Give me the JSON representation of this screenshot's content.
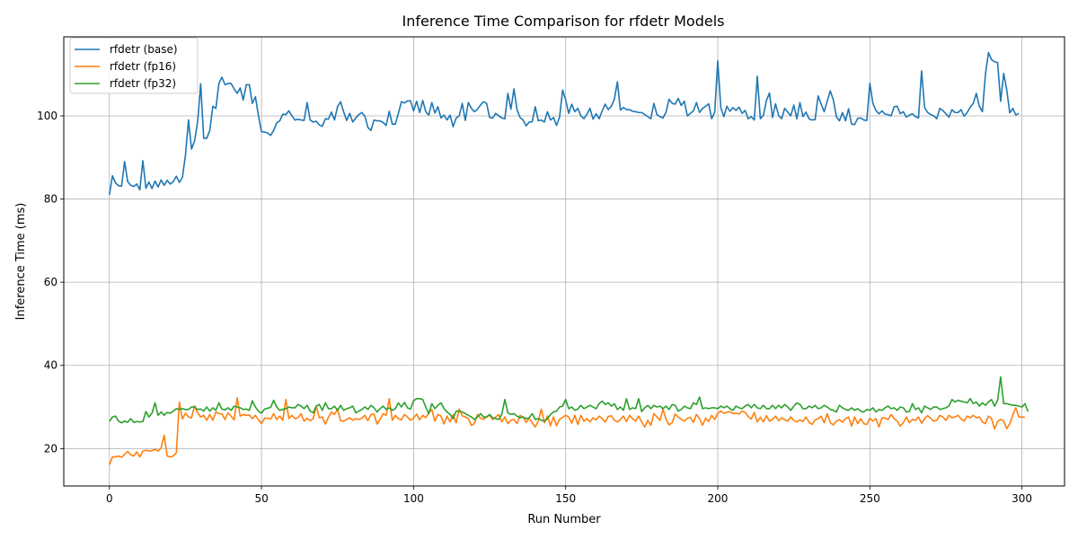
{
  "chart_data": {
    "type": "line",
    "title": "Inference Time Comparison for rfdetr Models",
    "xlabel": "Run Number",
    "ylabel": "Inference Time (ms)",
    "xlim": [
      -15,
      314
    ],
    "ylim": [
      11,
      119
    ],
    "xticks": [
      0,
      50,
      100,
      150,
      200,
      250,
      300
    ],
    "yticks": [
      20,
      40,
      60,
      80,
      100
    ],
    "grid": true,
    "legend_position": "top-left",
    "x": {
      "start": 0,
      "end": 299,
      "step": 1
    },
    "series": [
      {
        "name": "rfdetr (base)",
        "color": "#1f77b4",
        "values": [
          81.0,
          85.6,
          83.9,
          83.2,
          83.1,
          89.0,
          84.2,
          83.3,
          83.0,
          83.6,
          82.2,
          89.2,
          82.6,
          84.1,
          82.5,
          84.3,
          82.9,
          84.6,
          83.3,
          84.5,
          83.6,
          84.2,
          85.5,
          84.0,
          85.2,
          90.5,
          99.0,
          92.0,
          94.0,
          98.5,
          107.7,
          94.6,
          94.6,
          96.5,
          102.3,
          101.8,
          107.8,
          109.3,
          107.5,
          107.8,
          107.8,
          106.5,
          105.4,
          106.7,
          103.8,
          107.5,
          107.5,
          103.0,
          104.6,
          100.0,
          96.2,
          96.1,
          95.9,
          95.3,
          96.5,
          98.3,
          98.8,
          100.4,
          100.3,
          101.2,
          100.0,
          99.0,
          99.2,
          99.0,
          98.9,
          103.2,
          99.0,
          98.5,
          98.7,
          97.8,
          97.5,
          99.3,
          99.2,
          100.9,
          99.0,
          102.2,
          103.4,
          101.0,
          98.9,
          100.6,
          98.5,
          99.5,
          100.3,
          100.8,
          99.9,
          97.2,
          96.5,
          99.0,
          98.8,
          98.8,
          98.4,
          97.7,
          101.1,
          98.0,
          98.0,
          100.6,
          103.4,
          103.1,
          103.6,
          103.6,
          101.2,
          103.5,
          100.8,
          103.7,
          101.0,
          100.2,
          103.2,
          100.7,
          102.2,
          99.5,
          100.2,
          99.0,
          100.2,
          97.4,
          99.5,
          100.0,
          103.0,
          98.9,
          103.2,
          101.8,
          101.0,
          101.6,
          102.6,
          103.4,
          103.0,
          99.6,
          99.5,
          100.6,
          100.0,
          99.5,
          99.3,
          105.4,
          101.6,
          106.5,
          101.5,
          99.6,
          99.0,
          97.6,
          98.5,
          98.6,
          102.2,
          98.8,
          99.0,
          98.5,
          101.0,
          99.0,
          99.6,
          97.7,
          99.7,
          106.2,
          103.8,
          100.6,
          102.8,
          101.0,
          101.8,
          100.0,
          99.3,
          100.4,
          101.8,
          99.2,
          100.5,
          99.3,
          101.2,
          102.8,
          101.5,
          102.3,
          104.0,
          108.2,
          101.4,
          102.0,
          101.5,
          101.5,
          101.1,
          101.0,
          100.8,
          100.8,
          100.3,
          99.8,
          99.3,
          103.0,
          100.3,
          99.8,
          99.5,
          100.9,
          104.0,
          103.0,
          102.8,
          104.2,
          102.5,
          103.5,
          100.0,
          100.6,
          101.2,
          103.2,
          100.8,
          101.8,
          102.3,
          102.9,
          99.3,
          100.9,
          113.2,
          102.0,
          99.8,
          102.3,
          101.1,
          102.0,
          101.3,
          102.1,
          100.6,
          101.3,
          99.3,
          99.8,
          99.0,
          109.5,
          99.3,
          100.1,
          103.7,
          105.5,
          99.6,
          102.9,
          100.1,
          99.3,
          101.8,
          100.9,
          100.0,
          102.6,
          99.3,
          103.2,
          99.8,
          100.9,
          99.3,
          99.0,
          99.1,
          104.8,
          102.8,
          101.0,
          103.6,
          106.0,
          103.8,
          99.8,
          98.8,
          100.8,
          98.8,
          101.7,
          98.0,
          97.9,
          99.4,
          99.5,
          99.0,
          98.9,
          107.8,
          103.0,
          101.3,
          100.5,
          101.2,
          100.4,
          100.3,
          100.0,
          102.2,
          102.3,
          100.5,
          101.0,
          99.7,
          100.2,
          100.5,
          99.8,
          99.5,
          110.8,
          102.0,
          100.8,
          100.3,
          100.0,
          99.3,
          101.8,
          101.3,
          100.5,
          99.7,
          101.5,
          100.8,
          100.8,
          101.5,
          99.9,
          100.8,
          102.1,
          103.0,
          105.4,
          102.3,
          101.0,
          110.0,
          115.2,
          113.5,
          113.0,
          112.8,
          103.5,
          110.2,
          106.3,
          100.7,
          101.8,
          100.2,
          100.6
        ]
      },
      {
        "name": "rfdetr (fp16)",
        "color": "#ff7f0e",
        "values": [
          16.1,
          18.0,
          18.0,
          18.2,
          17.9,
          18.6,
          19.3,
          18.5,
          18.2,
          19.2,
          18.0,
          19.4,
          19.6,
          19.4,
          19.5,
          19.8,
          19.4,
          20.1,
          23.2,
          18.2,
          18.0,
          18.2,
          19.0,
          31.2,
          27.1,
          28.5,
          27.6,
          27.4,
          30.3,
          28.6,
          27.6,
          28.0,
          26.8,
          28.2,
          26.8,
          28.8,
          28.4,
          28.3,
          27.0,
          28.6,
          27.8,
          26.9,
          32.2,
          27.8,
          28.2,
          28.0,
          28.1,
          27.2,
          28.0,
          26.9,
          26.0,
          27.3,
          27.3,
          27.1,
          28.4,
          27.0,
          27.8,
          26.8,
          31.8,
          27.2,
          28.0,
          27.2,
          27.4,
          28.4,
          26.6,
          27.3,
          26.7,
          27.2,
          30.2,
          27.4,
          27.6,
          25.9,
          27.5,
          28.8,
          28.2,
          29.5,
          26.7,
          26.6,
          27.0,
          27.4,
          26.8,
          27.2,
          27.0,
          27.3,
          28.0,
          26.7,
          28.2,
          28.3,
          25.9,
          27.0,
          28.4,
          28.0,
          32.0,
          26.8,
          28.0,
          27.2,
          26.9,
          28.2,
          27.6,
          26.8,
          27.3,
          28.3,
          26.9,
          28.0,
          27.4,
          28.6,
          29.4,
          26.6,
          28.2,
          27.8,
          25.9,
          27.8,
          26.4,
          28.2,
          26.2,
          29.5,
          27.9,
          27.6,
          27.2,
          25.6,
          26.0,
          28.2,
          27.3,
          27.0,
          27.6,
          28.0,
          27.0,
          27.6,
          28.2,
          26.4,
          27.6,
          26.0,
          26.8,
          27.0,
          26.0,
          28.0,
          27.6,
          26.3,
          27.3,
          26.2,
          25.2,
          26.6,
          29.5,
          26.2,
          27.8,
          25.5,
          27.6,
          25.5,
          27.0,
          27.5,
          28.0,
          27.6,
          26.1,
          28.0,
          25.8,
          28.0,
          26.6,
          27.2,
          26.4,
          27.4,
          26.9,
          27.8,
          27.2,
          26.4,
          27.7,
          27.9,
          26.8,
          26.4,
          27.0,
          27.8,
          26.5,
          28.0,
          27.2,
          26.6,
          27.8,
          26.4,
          25.2,
          26.8,
          25.6,
          28.4,
          27.6,
          26.8,
          29.4,
          27.0,
          25.7,
          26.2,
          28.3,
          27.6,
          27.0,
          26.6,
          27.3,
          27.5,
          26.3,
          28.2,
          27.2,
          25.6,
          27.3,
          26.5,
          28.0,
          27.0,
          28.5,
          29.0,
          28.5,
          28.7,
          28.9,
          28.4,
          28.5,
          28.3,
          29.0,
          28.7,
          27.7,
          27.1,
          28.7,
          26.4,
          27.5,
          26.4,
          27.9,
          26.6,
          27.0,
          27.8,
          26.7,
          27.4,
          26.9,
          26.6,
          27.6,
          26.8,
          26.4,
          26.9,
          26.5,
          27.6,
          26.3,
          25.8,
          26.9,
          27.2,
          27.8,
          26.2,
          28.4,
          26.2,
          25.7,
          26.6,
          27.0,
          26.3,
          27.2,
          27.6,
          25.4,
          27.6,
          26.0,
          27.2,
          26.0,
          25.8,
          27.3,
          26.6,
          27.2,
          25.2,
          27.4,
          27.3,
          27.0,
          28.2,
          27.2,
          26.6,
          25.4,
          26.2,
          27.6,
          26.2,
          27.0,
          26.8,
          27.6,
          26.1,
          27.2,
          27.9,
          27.3,
          26.6,
          26.8,
          28.0,
          27.6,
          26.8,
          28.0,
          27.4,
          27.6,
          28.0,
          27.1,
          26.6,
          27.8,
          27.4,
          28.0,
          27.4,
          27.6,
          26.4,
          26.0,
          27.8,
          27.2,
          24.7,
          26.5,
          27.0,
          26.6,
          24.8,
          26.0,
          28.1,
          29.8,
          27.6,
          27.6,
          27.5
        ]
      },
      {
        "name": "rfdetr (fp32)",
        "color": "#2ca02c",
        "values": [
          26.5,
          27.6,
          27.8,
          26.6,
          26.2,
          26.6,
          26.3,
          27.2,
          26.3,
          26.5,
          26.4,
          26.5,
          28.9,
          27.6,
          28.5,
          31.0,
          28.0,
          28.8,
          28.0,
          28.7,
          28.5,
          29.0,
          29.6,
          29.4,
          29.6,
          29.4,
          29.4,
          30.0,
          30.0,
          29.4,
          29.5,
          29.0,
          30.0,
          29.0,
          29.8,
          29.2,
          31.0,
          29.5,
          29.3,
          29.8,
          29.2,
          30.2,
          30.0,
          29.8,
          29.4,
          29.5,
          29.2,
          31.5,
          30.0,
          29.0,
          28.5,
          29.5,
          29.7,
          29.9,
          31.6,
          30.0,
          29.2,
          29.4,
          29.6,
          30.0,
          29.8,
          29.8,
          30.6,
          30.2,
          29.6,
          30.4,
          29.0,
          28.6,
          30.2,
          30.6,
          29.2,
          31.0,
          29.6,
          29.6,
          30.2,
          29.2,
          30.4,
          29.2,
          29.6,
          29.8,
          30.2,
          28.6,
          29.0,
          29.4,
          30.0,
          29.4,
          30.4,
          29.8,
          28.8,
          29.6,
          30.2,
          29.4,
          29.8,
          29.2,
          29.6,
          31.0,
          30.0,
          31.1,
          29.8,
          29.5,
          31.5,
          32.0,
          32.0,
          31.8,
          30.0,
          28.4,
          30.8,
          29.6,
          30.4,
          31.0,
          29.6,
          28.8,
          28.2,
          27.2,
          29.0,
          29.0,
          28.8,
          28.4,
          28.0,
          27.6,
          27.0,
          27.6,
          28.4,
          27.6,
          27.6,
          28.2,
          27.4,
          27.2,
          27.0,
          28.2,
          31.8,
          28.6,
          28.2,
          28.4,
          27.8,
          27.4,
          27.6,
          27.2,
          27.4,
          28.4,
          27.0,
          27.2,
          26.8,
          26.6,
          27.2,
          28.2,
          28.8,
          29.0,
          30.0,
          30.2,
          31.8,
          29.6,
          30.0,
          29.2,
          29.5,
          30.4,
          29.6,
          30.0,
          30.4,
          30.0,
          29.6,
          30.8,
          31.4,
          30.6,
          31.0,
          30.2,
          30.8,
          29.4,
          30.0,
          29.2,
          32.0,
          29.4,
          29.8,
          29.6,
          32.0,
          28.9,
          29.8,
          30.4,
          29.6,
          30.4,
          30.0,
          30.2,
          29.6,
          30.2,
          29.4,
          30.6,
          30.4,
          29.0,
          29.4,
          30.2,
          29.8,
          29.6,
          31.0,
          30.6,
          32.4,
          29.6,
          29.8,
          29.6,
          29.8,
          29.8,
          29.6,
          30.2,
          29.8,
          30.2,
          29.6,
          29.2,
          30.2,
          29.8,
          29.6,
          30.2,
          30.6,
          29.8,
          30.6,
          29.8,
          29.6,
          30.4,
          29.6,
          29.6,
          30.4,
          29.6,
          30.4,
          29.8,
          30.6,
          30.0,
          29.2,
          30.2,
          31.0,
          30.6,
          29.6,
          29.6,
          30.2,
          29.8,
          30.4,
          29.6,
          29.8,
          30.4,
          30.0,
          29.4,
          29.2,
          28.8,
          30.4,
          29.8,
          29.4,
          29.2,
          29.8,
          29.2,
          29.6,
          29.0,
          28.8,
          29.4,
          29.2,
          29.8,
          28.8,
          29.4,
          29.2,
          29.8,
          30.2,
          29.6,
          29.8,
          29.2,
          30.0,
          29.8,
          28.8,
          28.9,
          30.8,
          29.4,
          29.8,
          28.6,
          30.2,
          29.8,
          29.4,
          30.0,
          30.0,
          29.4,
          29.6,
          29.8,
          30.2,
          31.8,
          31.2,
          31.6,
          31.4,
          31.2,
          31.0,
          32.0,
          30.8,
          31.2,
          30.2,
          31.0,
          30.4,
          31.2,
          31.8,
          30.2,
          31.6,
          37.2,
          30.8,
          30.8,
          30.6,
          30.4,
          30.4,
          30.2,
          30.0,
          30.8,
          28.9
        ]
      }
    ]
  }
}
